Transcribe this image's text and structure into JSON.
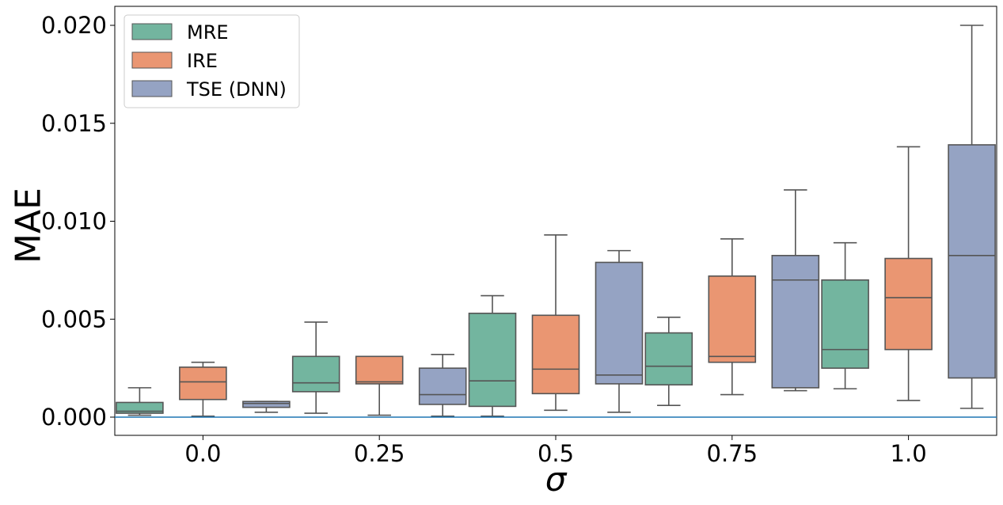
{
  "chart_data": {
    "type": "boxplot",
    "title": "",
    "xlabel": "σ",
    "ylabel": "MAE",
    "categories": [
      "0.0",
      "0.25",
      "0.5",
      "0.75",
      "1.0"
    ],
    "ylim": [
      -0.001,
      0.021
    ],
    "yticks": [
      0.0,
      0.005,
      0.01,
      0.015,
      0.02
    ],
    "ytick_labels": [
      "0.000",
      "0.005",
      "0.010",
      "0.015",
      "0.020"
    ],
    "reference_line": 0.0,
    "reference_line_color": "#1f77b4",
    "legend_position": "top-left",
    "series": [
      {
        "name": "MRE",
        "color": "#73b59f",
        "boxes": [
          {
            "min": 0.0001,
            "q1": 0.0002,
            "median": 0.0003,
            "q3": 0.00075,
            "max": 0.0015
          },
          {
            "min": 0.0002,
            "q1": 0.0013,
            "median": 0.00175,
            "q3": 0.0031,
            "max": 0.00485
          },
          {
            "min": 5e-05,
            "q1": 0.00055,
            "median": 0.00185,
            "q3": 0.0053,
            "max": 0.0062
          },
          {
            "min": 0.0006,
            "q1": 0.00165,
            "median": 0.0026,
            "q3": 0.0043,
            "max": 0.0051
          },
          {
            "min": 0.00145,
            "q1": 0.0025,
            "median": 0.00345,
            "q3": 0.007,
            "max": 0.0089
          }
        ]
      },
      {
        "name": "IRE",
        "color": "#ea9672",
        "boxes": [
          {
            "min": 5e-05,
            "q1": 0.0009,
            "median": 0.0018,
            "q3": 0.00255,
            "max": 0.0028
          },
          {
            "min": 0.0001,
            "q1": 0.0017,
            "median": 0.0018,
            "q3": 0.0031,
            "max": 0.0031
          },
          {
            "min": 0.00035,
            "q1": 0.0012,
            "median": 0.00245,
            "q3": 0.0052,
            "max": 0.0093
          },
          {
            "min": 0.00115,
            "q1": 0.0028,
            "median": 0.0031,
            "q3": 0.0072,
            "max": 0.0091
          },
          {
            "min": 0.00085,
            "q1": 0.00345,
            "median": 0.0061,
            "q3": 0.0081,
            "max": 0.0138
          }
        ]
      },
      {
        "name": "TSE (DNN)",
        "color": "#95a3c3",
        "boxes": [
          {
            "min": 0.00025,
            "q1": 0.0005,
            "median": 0.0007,
            "q3": 0.0008,
            "max": 0.0008
          },
          {
            "min": 5e-05,
            "q1": 0.00065,
            "median": 0.00115,
            "q3": 0.0025,
            "max": 0.0032
          },
          {
            "min": 0.00025,
            "q1": 0.0017,
            "median": 0.00215,
            "q3": 0.0079,
            "max": 0.0085
          },
          {
            "min": 0.00135,
            "q1": 0.0015,
            "median": 0.007,
            "q3": 0.00825,
            "max": 0.0116
          },
          {
            "min": 0.00045,
            "q1": 0.002,
            "median": 0.00825,
            "q3": 0.0139,
            "max": 0.02
          }
        ]
      }
    ]
  }
}
